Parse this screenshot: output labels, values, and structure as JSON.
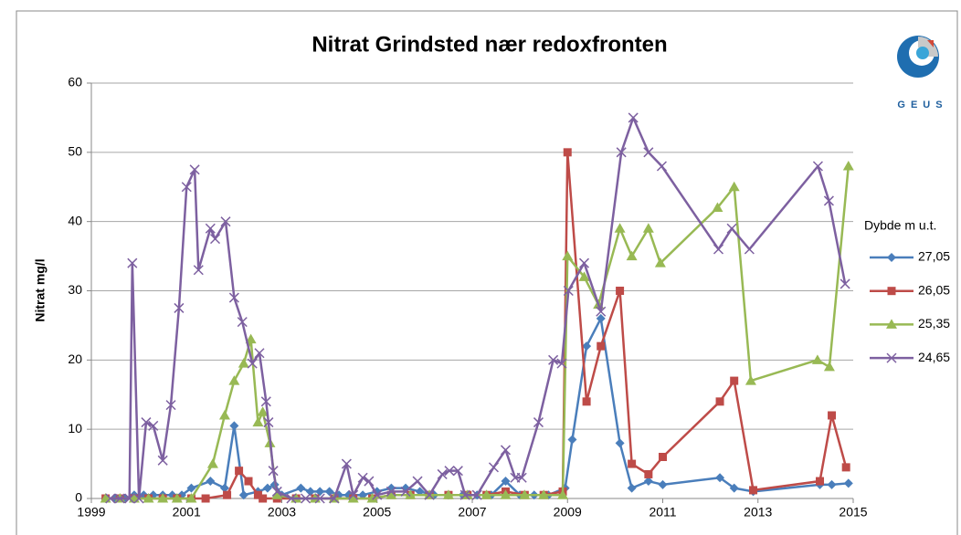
{
  "chart_data": {
    "type": "line",
    "title": "Nitrat Grindsted nær redoxfronten",
    "y_label": "Nitrat mg/l",
    "legend_title": "Dybde m u.t.",
    "logo_text": "GEUS",
    "legend": "right",
    "grid": true,
    "xlim": [
      1999,
      2015
    ],
    "xticks": [
      1999,
      2001,
      2003,
      2005,
      2007,
      2009,
      2011,
      2013,
      2015
    ],
    "ylim": [
      0,
      60
    ],
    "yticks": [
      0,
      10,
      20,
      30,
      40,
      50,
      60
    ],
    "series": [
      {
        "name": "27,05",
        "color": "#4a7ebb",
        "marker": "diamond",
        "x": [
          1999.3,
          1999.5,
          1999.7,
          1999.9,
          2000.1,
          2000.3,
          2000.5,
          2000.7,
          2000.9,
          2001.1,
          2001.5,
          2001.8,
          2002.0,
          2002.2,
          2002.5,
          2002.7,
          2002.85,
          2003.0,
          2003.4,
          2003.6,
          2003.8,
          2004.0,
          2004.2,
          2004.4,
          2004.7,
          2005.0,
          2005.3,
          2005.6,
          2005.9,
          2006.2,
          2006.5,
          2006.8,
          2007.1,
          2007.4,
          2007.7,
          2008.0,
          2008.3,
          2008.6,
          2008.95,
          2009.1,
          2009.4,
          2009.7,
          2010.1,
          2010.35,
          2010.7,
          2011.0,
          2012.2,
          2012.5,
          2012.9,
          2014.3,
          2014.55,
          2014.9
        ],
        "values": [
          0,
          0,
          0,
          0.5,
          0.5,
          0.5,
          0.5,
          0.5,
          0.5,
          1.5,
          2.5,
          1.5,
          10.5,
          0.5,
          1,
          1.5,
          2,
          0.5,
          1.5,
          1,
          1,
          1,
          0.5,
          0.5,
          0.5,
          1,
          1.5,
          1.5,
          1,
          0.5,
          0.5,
          0.5,
          0.5,
          0.5,
          2.5,
          0.5,
          0.5,
          0.5,
          1.5,
          8.5,
          22,
          26,
          8,
          1.5,
          2.5,
          2,
          3,
          1.5,
          1,
          2,
          2,
          2.2
        ]
      },
      {
        "name": "26,05",
        "color": "#be4b48",
        "marker": "square",
        "x": [
          1999.3,
          1999.6,
          1999.9,
          2000.2,
          2000.5,
          2000.8,
          2001.1,
          2001.4,
          2001.85,
          2002.1,
          2002.3,
          2002.5,
          2002.6,
          2002.9,
          2003.3,
          2003.7,
          2004.1,
          2004.5,
          2004.9,
          2005.3,
          2005.7,
          2006.1,
          2006.5,
          2006.9,
          2007.3,
          2007.7,
          2008.1,
          2008.5,
          2008.9,
          2009.0,
          2009.4,
          2009.7,
          2010.1,
          2010.35,
          2010.7,
          2011.0,
          2012.2,
          2012.5,
          2012.9,
          2014.3,
          2014.55,
          2014.85
        ],
        "values": [
          0,
          0,
          0,
          0,
          0,
          0,
          0,
          0,
          0.5,
          4,
          2.5,
          0.5,
          0,
          0,
          0,
          0,
          0,
          0,
          0,
          0.5,
          0.5,
          0.5,
          0.5,
          0.5,
          0.5,
          1,
          0.5,
          0.5,
          1,
          50,
          14,
          22,
          30,
          5,
          3.5,
          6,
          14,
          17,
          1.2,
          2.5,
          12,
          4.5
        ]
      },
      {
        "name": "25,35",
        "color": "#98b954",
        "marker": "triangle",
        "x": [
          1999.3,
          1999.6,
          1999.9,
          2000.2,
          2000.5,
          2000.8,
          2001.1,
          2001.55,
          2001.8,
          2002.0,
          2002.2,
          2002.35,
          2002.5,
          2002.6,
          2002.75,
          2002.9,
          2003.3,
          2003.7,
          2004.1,
          2004.5,
          2004.9,
          2005.3,
          2005.7,
          2006.1,
          2006.5,
          2006.9,
          2007.3,
          2007.7,
          2008.1,
          2008.5,
          2008.9,
          2009.0,
          2009.35,
          2009.65,
          2010.1,
          2010.35,
          2010.7,
          2010.95,
          2012.15,
          2012.5,
          2012.85,
          2014.25,
          2014.5,
          2014.9
        ],
        "values": [
          0,
          0,
          0,
          0,
          0,
          0,
          0,
          5,
          12,
          17,
          19.5,
          23,
          11,
          12.5,
          8,
          0.5,
          0,
          0,
          0,
          0,
          0,
          0.5,
          0.5,
          0.5,
          0.5,
          0.5,
          0.5,
          0.5,
          0.5,
          0.5,
          0.5,
          35,
          32,
          28,
          39,
          35,
          39,
          34,
          42,
          45,
          17,
          20,
          19,
          48
        ]
      },
      {
        "name": "24,65",
        "color": "#7d60a0",
        "marker": "x",
        "x": [
          1999.4,
          1999.6,
          1999.8,
          1999.86,
          2000.0,
          2000.15,
          2000.3,
          2000.5,
          2000.67,
          2000.84,
          2001.0,
          2001.17,
          2001.25,
          2001.5,
          2001.6,
          2001.82,
          2002.0,
          2002.17,
          2002.38,
          2002.53,
          2002.67,
          2002.72,
          2002.82,
          2002.9,
          2003.2,
          2003.5,
          2003.8,
          2004.1,
          2004.36,
          2004.5,
          2004.7,
          2004.83,
          2005.0,
          2005.3,
          2005.6,
          2005.85,
          2006.1,
          2006.37,
          2006.52,
          2006.7,
          2006.85,
          2007.1,
          2007.45,
          2007.7,
          2007.9,
          2008.04,
          2008.39,
          2008.7,
          2008.88,
          2009.02,
          2009.35,
          2009.7,
          2010.13,
          2010.38,
          2010.7,
          2010.98,
          2012.17,
          2012.45,
          2012.82,
          2014.26,
          2014.49,
          2014.83
        ],
        "values": [
          0,
          0,
          0,
          34,
          0,
          11,
          10.5,
          5.5,
          13.5,
          27.5,
          45,
          47.5,
          33,
          39,
          37.5,
          40,
          29,
          25.5,
          19.5,
          21,
          14,
          11,
          4,
          1,
          0,
          0,
          0,
          0,
          5,
          0.5,
          3,
          2.5,
          0.5,
          1,
          1,
          2.5,
          0.5,
          3.5,
          4,
          4,
          0.5,
          0.5,
          4.5,
          7,
          3,
          3,
          11,
          20,
          19.5,
          30,
          34,
          27,
          50,
          55,
          50,
          48,
          36,
          39,
          36,
          48,
          43,
          31
        ]
      }
    ]
  }
}
